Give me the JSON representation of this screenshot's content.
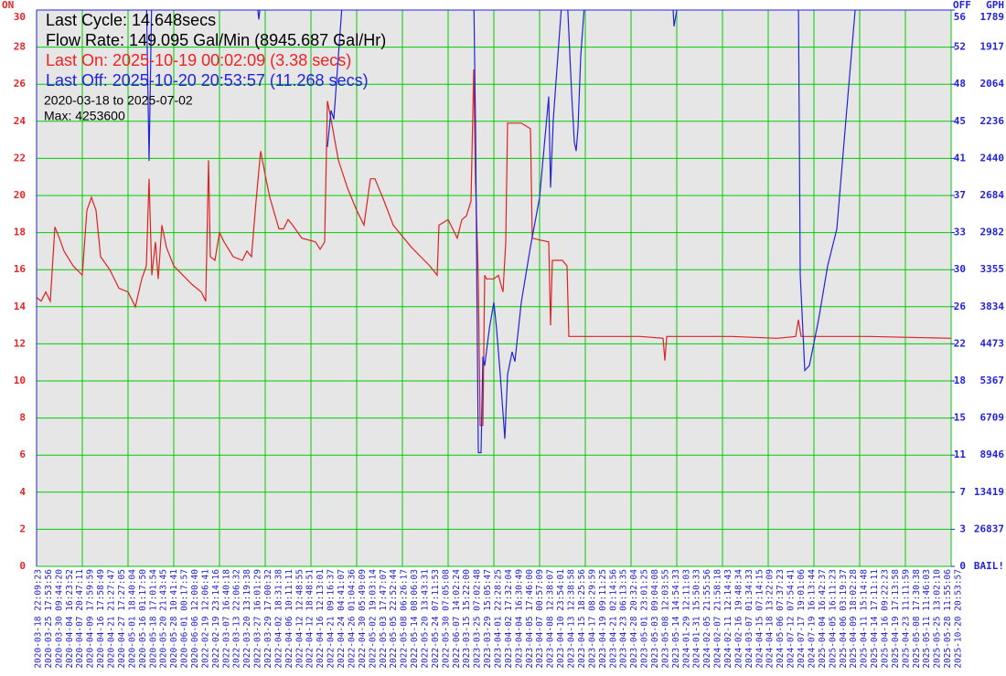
{
  "chart_data": {
    "type": "line",
    "annotations": [
      {
        "text": "Last Cycle: 14.648secs",
        "color": "#000000"
      },
      {
        "text": "Flow Rate: 149.095 Gal/Min (8945.687 Gal/Hr)",
        "color": "#000000"
      },
      {
        "text": "Last On: 2025-10-19 00:02:09 (3.38 secs)",
        "color": "#ee2222"
      },
      {
        "text": "Last Off: 2025-10-20 20:53:57 (11.268 secs)",
        "color": "#2222dd"
      },
      {
        "text": "2020-03-18 to 2025-07-02",
        "color": "#000000"
      },
      {
        "text": "Max: 4253600",
        "color": "#000000"
      }
    ],
    "gph_label": "GPH",
    "xlim": [
      0,
      1000
    ],
    "ylim": [
      0,
      30
    ],
    "yticks": [
      0,
      2,
      4,
      6,
      8,
      10,
      12,
      14,
      16,
      18,
      20,
      22,
      24,
      26,
      28,
      30
    ],
    "y2lim": [
      0,
      56.25
    ],
    "y2ticks": [
      {
        "value": 0,
        "label": "0"
      },
      {
        "value": 3.75,
        "label": "3"
      },
      {
        "value": 7.5,
        "label": "7"
      },
      {
        "value": 11.25,
        "label": "11"
      },
      {
        "value": 15,
        "label": "15"
      },
      {
        "value": 18.75,
        "label": "18"
      },
      {
        "value": 22.5,
        "label": "22"
      },
      {
        "value": 26.25,
        "label": "26"
      },
      {
        "value": 30,
        "label": "30"
      },
      {
        "value": 33.75,
        "label": "33"
      },
      {
        "value": 37.5,
        "label": "37"
      },
      {
        "value": 41.25,
        "label": "41"
      },
      {
        "value": 45,
        "label": "45"
      },
      {
        "value": 48.75,
        "label": "48"
      },
      {
        "value": 52.5,
        "label": "52"
      },
      {
        "value": 56.25,
        "label": "56"
      }
    ],
    "gph_labels": [
      "BAIL!",
      "26837",
      "13419",
      "8946",
      "6709",
      "5367",
      "4473",
      "3834",
      "3355",
      "2982",
      "2684",
      "2440",
      "2236",
      "2064",
      "1917",
      "1789"
    ],
    "grid": true,
    "xlabels": [
      "2020-03-18 22:09:23",
      "2020-03-25 17:53:56",
      "2020-03-30 09:44:20",
      "2020-04-04 16:23:52",
      "2020-04-07 20:47:11",
      "2020-04-09 17:59:59",
      "2020-04-16 17:58:49",
      "2020-04-21 21:27:47",
      "2020-04-27 17:27:05",
      "2020-05-01 18:40:04",
      "2020-05-16 01:17:50",
      "2020-05-18 17:01:54",
      "2020-05-20 21:43:45",
      "2020-05-28 10:41:41",
      "2020-06-01 00:17:57",
      "2020-06-06 12:00:40",
      "2022-02-19 12:06:41",
      "2022-02-19 23:14:16",
      "2022-03-07 16:40:18",
      "2022-03-13 22:06:32",
      "2022-03-20 13:19:38",
      "2022-03-27 16:01:29",
      "2022-03-29 17:00:32",
      "2022-04-02 18:31:38",
      "2022-04-06 10:11:11",
      "2022-04-12 12:48:55",
      "2022-04-12 18:48:51",
      "2022-04-16 12:13:01",
      "2022-04-21 09:16:37",
      "2022-04-24 04:41:07",
      "2022-04-26 01:04:36",
      "2022-04-30 05:49:09",
      "2022-05-02 19:03:14",
      "2022-05-03 17:47:07",
      "2022-05-05 22:52:44",
      "2022-05-08 06:26:17",
      "2022-05-14 08:06:03",
      "2022-05-20 13:43:31",
      "2022-05-24 07:11:53",
      "2022-05-30 07:05:08",
      "2022-06-07 14:02:24",
      "2023-03-15 15:22:00",
      "2023-03-25 07:02:48",
      "2023-03-29 15:05:47",
      "2023-04-01 22:28:25",
      "2023-04-02 17:32:04",
      "2023-04-04 16:30:49",
      "2023-04-05 17:46:00",
      "2023-04-07 00:57:09",
      "2023-04-08 12:38:07",
      "2023-04-10 23:54:01",
      "2023-04-13 12:38:58",
      "2023-04-15 18:25:56",
      "2023-04-17 08:29:59",
      "2023-04-19 09:11:25",
      "2023-04-21 02:14:56",
      "2023-04-23 06:13:35",
      "2023-04-28 20:32:04",
      "2023-05-01 23:01:25",
      "2023-05-03 09:04:08",
      "2023-05-08 12:03:55",
      "2023-05-14 14:54:33",
      "2024-01-29 12:11:03",
      "2024-01-31 15:50:33",
      "2024-02-05 21:55:56",
      "2024-02-07 21:58:18",
      "2024-02-11 12:14:43",
      "2024-02-16 19:48:34",
      "2024-03-07 01:34:33",
      "2024-04-15 07:14:15",
      "2024-04-18 13:22:09",
      "2024-05-06 07:37:23",
      "2024-07-12 07:54:41",
      "2024-07-17 19:01:06",
      "2024-07-19 16:13:44",
      "2025-04-04 16:42:37",
      "2025-04-05 16:11:23",
      "2025-04-06 03:19:37",
      "2025-04-09 18:02:28",
      "2025-04-11 15:14:48",
      "2025-04-14 17:11:11",
      "2025-04-16 09:22:23",
      "2025-04-19 17:13:58",
      "2025-04-23 11:11:59",
      "2025-05-08 17:30:38",
      "2025-05-11 11:46:03",
      "2025-05-25 13:02:10",
      "2025-05-28 11:55:06",
      "2025-10-20 20:53:57"
    ],
    "series": [
      {
        "name": "ON",
        "color": "#dd2222",
        "x": [
          0,
          5,
          10,
          15,
          20,
          25,
          30,
          40,
          50,
          55,
          60,
          65,
          70,
          80,
          90,
          100,
          108,
          115,
          120,
          123,
          126,
          130,
          133,
          137,
          142,
          150,
          160,
          170,
          180,
          185,
          188,
          190,
          195,
          200,
          205,
          215,
          225,
          230,
          235,
          240,
          245,
          250,
          255,
          265,
          270,
          275,
          280,
          290,
          305,
          310,
          315,
          318,
          322,
          330,
          340,
          350,
          358,
          365,
          370,
          380,
          390,
          400,
          410,
          420,
          430,
          438,
          440,
          450,
          460,
          465,
          470,
          475,
          478,
          480,
          483,
          485,
          488,
          490,
          492,
          500,
          505,
          510,
          513,
          515,
          530,
          540,
          542,
          550,
          560,
          562,
          564,
          575,
          580,
          582,
          660,
          685,
          687,
          689,
          760,
          810,
          830,
          833,
          836,
          910,
          1000
        ],
        "values": [
          14.5,
          14.3,
          14.8,
          14.3,
          18.3,
          17.7,
          17.0,
          16.2,
          15.7,
          19.2,
          19.9,
          19.2,
          16.7,
          16.0,
          15.0,
          14.8,
          14.0,
          15.5,
          16.2,
          20.9,
          15.7,
          17.5,
          15.5,
          18.4,
          17.2,
          16.2,
          15.7,
          15.2,
          14.8,
          14.3,
          21.9,
          16.7,
          16.5,
          18.0,
          17.5,
          16.7,
          16.5,
          17.0,
          16.7,
          19.7,
          22.4,
          21.1,
          19.9,
          18.2,
          18.2,
          18.7,
          18.4,
          17.7,
          17.5,
          17.1,
          17.5,
          25.1,
          24.1,
          21.9,
          20.4,
          19.2,
          18.4,
          20.9,
          20.9,
          19.7,
          18.4,
          17.8,
          17.2,
          16.7,
          16.2,
          15.7,
          18.4,
          18.7,
          17.7,
          18.7,
          18.9,
          19.7,
          26.8,
          20.7,
          15.5,
          7.6,
          7.6,
          15.7,
          15.5,
          15.5,
          15.7,
          14.8,
          17.5,
          23.9,
          23.9,
          23.6,
          17.7,
          17.6,
          17.5,
          13.0,
          16.5,
          16.5,
          16.2,
          12.4,
          12.4,
          12.3,
          11.1,
          12.4,
          12.4,
          12.3,
          12.4,
          13.3,
          12.4,
          12.4,
          12.3
        ]
      },
      {
        "name": "OFF",
        "color": "#2222dd",
        "axis": "y2",
        "x": [
          120,
          123,
          126,
          127,
          240,
          243,
          246,
          247,
          318,
          322,
          325,
          330,
          335,
          336,
          478,
          480,
          482,
          483,
          486,
          488,
          490,
          495,
          500,
          503,
          507,
          512,
          515,
          520,
          523,
          530,
          540,
          550,
          555,
          560,
          562,
          565,
          570,
          575,
          578,
          580,
          585,
          588,
          590,
          592,
          595,
          600,
          601,
          695,
          697,
          700,
          702,
          703,
          833,
          835,
          840,
          845,
          855,
          865,
          875,
          885,
          895,
          897
        ],
        "values": [
          58,
          41.0,
          58,
          null,
          58,
          55.3,
          58,
          null,
          42.4,
          46.1,
          45.2,
          51.6,
          58,
          null,
          58,
          44.3,
          22.1,
          11.5,
          11.5,
          21.2,
          20.3,
          24.0,
          26.7,
          24.0,
          19.4,
          12.9,
          19.4,
          21.7,
          20.7,
          26.7,
          32.3,
          37.3,
          42.4,
          47.5,
          38.3,
          45.2,
          51.6,
          58,
          null,
          58,
          47.9,
          42.9,
          42.0,
          44.3,
          51.6,
          58,
          null,
          58,
          54.6,
          56.2,
          58,
          null,
          58,
          29.5,
          19.8,
          20.3,
          24.9,
          30.4,
          34.1,
          45.2,
          56.2,
          58
        ]
      }
    ]
  }
}
